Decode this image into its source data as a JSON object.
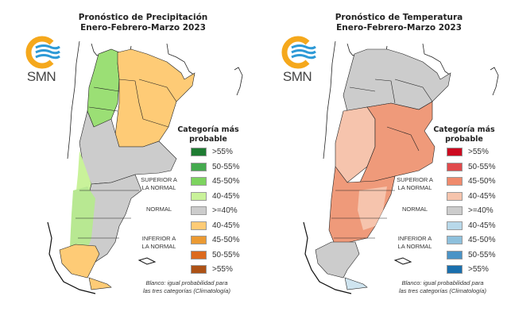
{
  "panels": [
    {
      "id": "precipitation",
      "title_line1": "Pronóstico de Precipitación",
      "title_line2": "Enero-Febrero-Marzo 2023",
      "logo_text": "SMN",
      "legend": {
        "title_line1": "Categoría más",
        "title_line2": "probable",
        "items": [
          {
            "label": ">55%",
            "color": "#1e7b32",
            "category": "superior"
          },
          {
            "label": "50-55%",
            "color": "#44a94e",
            "category": "superior"
          },
          {
            "label": "45-50%",
            "color": "#7dd35f",
            "category": "superior"
          },
          {
            "label": "40-45%",
            "color": "#c9f29a",
            "category": "superior"
          },
          {
            "label": ">=40%",
            "color": "#cccccc",
            "category": "normal"
          },
          {
            "label": "40-45%",
            "color": "#fecb76",
            "category": "inferior"
          },
          {
            "label": "45-50%",
            "color": "#eb9a33",
            "category": "inferior"
          },
          {
            "label": "50-55%",
            "color": "#dc6a1e",
            "category": "inferior"
          },
          {
            "label": ">55%",
            "color": "#ad5216",
            "category": "inferior"
          }
        ],
        "category_superior_line1": "SUPERIOR A",
        "category_superior_line2": "LA NORMAL",
        "category_normal": "NORMAL",
        "category_inferior_line1": "INFERIOR A",
        "category_inferior_line2": "LA NORMAL"
      },
      "note_line1": "Blanco: igual probabilidad para",
      "note_line2": "las tres categorías (Climatología)"
    },
    {
      "id": "temperature",
      "title_line1": "Pronóstico de Temperatura",
      "title_line2": "Enero-Febrero-Marzo 2023",
      "logo_text": "SMN",
      "legend": {
        "title_line1": "Categoría más",
        "title_line2": "probable",
        "items": [
          {
            "label": ">55%",
            "color": "#cc0a20",
            "category": "superior"
          },
          {
            "label": "50-55%",
            "color": "#e04a4c",
            "category": "superior"
          },
          {
            "label": "45-50%",
            "color": "#ef8a6c",
            "category": "superior"
          },
          {
            "label": "40-45%",
            "color": "#f6c4ad",
            "category": "superior"
          },
          {
            "label": ">=40%",
            "color": "#cccccc",
            "category": "normal"
          },
          {
            "label": "40-45%",
            "color": "#b8d8ea",
            "category": "inferior"
          },
          {
            "label": "45-50%",
            "color": "#8ec0dc",
            "category": "inferior"
          },
          {
            "label": "50-55%",
            "color": "#4a93c6",
            "category": "inferior"
          },
          {
            "label": ">55%",
            "color": "#1a6fad",
            "category": "inferior"
          }
        ],
        "category_superior_line1": "SUPERIOR A",
        "category_superior_line2": "LA NORMAL",
        "category_normal": "NORMAL",
        "category_inferior_line1": "INFERIOR A",
        "category_inferior_line2": "LA NORMAL"
      },
      "note_line1": "Blanco: igual probabilidad para",
      "note_line2": "las tres categorías (Climatología)"
    }
  ],
  "brand": {
    "logo_orange": "#f5a81c",
    "logo_blue": "#2e9ad6"
  }
}
